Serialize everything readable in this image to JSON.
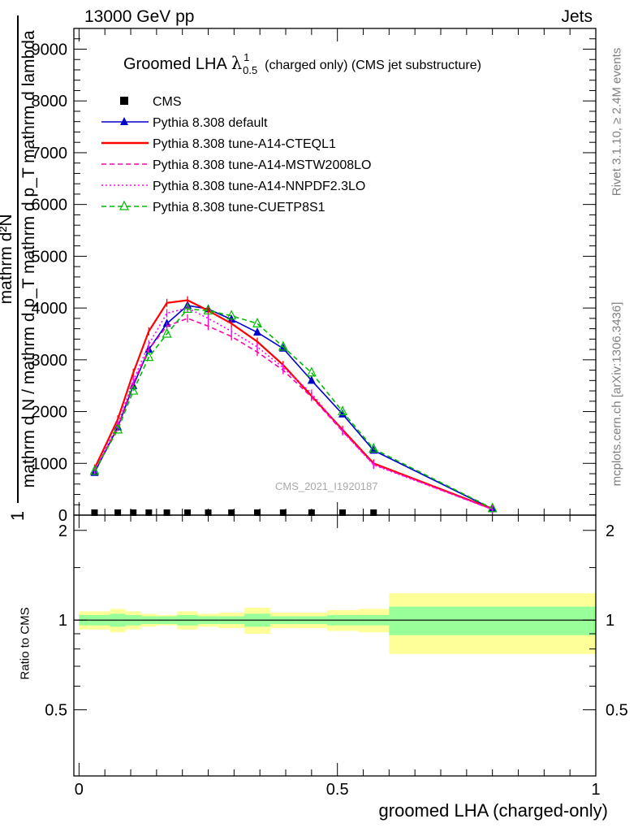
{
  "header": {
    "beam": "13000 GeV pp",
    "category": "Jets"
  },
  "side_labels": {
    "rivet": "Rivet 3.1.10, ≥ 2.4M events",
    "mcplots": "mcplots.cern.ch [arXiv:1306.3436]"
  },
  "watermark": "CMS_2021_I1920187",
  "chart_data": [
    {
      "type": "line",
      "title_main": "Groomed LHA",
      "title_symbol": "λ",
      "title_sup": "1",
      "title_sub": "0.5",
      "title_suffix": "(charged only) (CMS jet substructure)",
      "ylabel_numerator": "mathrm d²N",
      "ylabel_fraction_top": "1",
      "ylabel_denominator": "mathrm d N / mathrm d p_T mathrm d p_T mathrm d lambda",
      "ylim": [
        0,
        9400
      ],
      "yticks": [
        0,
        1000,
        2000,
        3000,
        4000,
        5000,
        6000,
        7000,
        8000,
        9000
      ],
      "ytick_labels": [
        "0",
        "1000",
        "2000",
        "3000",
        "4000",
        "5000",
        "6000",
        "7000",
        "8000",
        "9000"
      ],
      "xlim": [
        -0.01,
        1.0
      ],
      "legend_position": "top-left",
      "series": [
        {
          "name": "CMS",
          "color": "#000000",
          "dash": "",
          "marker": "square",
          "x": [
            0.03,
            0.075,
            0.105,
            0.135,
            0.17,
            0.21,
            0.25,
            0.295,
            0.345,
            0.395,
            0.45,
            0.51,
            0.57
          ],
          "y": [
            0,
            0,
            0,
            0,
            0,
            0,
            0,
            0,
            0,
            0,
            0,
            0,
            0
          ]
        },
        {
          "name": "Pythia 8.308 default",
          "color": "#0000cc",
          "dash": "",
          "marker": "triangle",
          "x": [
            0.03,
            0.075,
            0.105,
            0.135,
            0.17,
            0.21,
            0.25,
            0.295,
            0.345,
            0.395,
            0.45,
            0.51,
            0.57,
            0.8
          ],
          "y": [
            820,
            1700,
            2500,
            3200,
            3700,
            4050,
            3980,
            3780,
            3530,
            3220,
            2600,
            1950,
            1250,
            120
          ]
        },
        {
          "name": "Pythia 8.308 tune-A14-CTEQL1",
          "color": "#ff0000",
          "dash": "",
          "marker": "none",
          "x": [
            0.03,
            0.075,
            0.105,
            0.135,
            0.17,
            0.21,
            0.25,
            0.295,
            0.345,
            0.395,
            0.45,
            0.51,
            0.57,
            0.8
          ],
          "y": [
            900,
            1850,
            2750,
            3550,
            4100,
            4150,
            3950,
            3700,
            3350,
            2900,
            2300,
            1650,
            1000,
            120
          ]
        },
        {
          "name": "Pythia 8.308 tune-A14-MSTW2008LO",
          "color": "#ff00aa",
          "dash": "6,4",
          "marker": "none",
          "x": [
            0.03,
            0.075,
            0.105,
            0.135,
            0.17,
            0.21,
            0.25,
            0.295,
            0.345,
            0.395,
            0.45,
            0.51,
            0.57,
            0.8
          ],
          "y": [
            850,
            1700,
            2550,
            3200,
            3650,
            3800,
            3650,
            3450,
            3150,
            2800,
            2280,
            1620,
            980,
            110
          ]
        },
        {
          "name": "Pythia 8.308 tune-A14-NNPDF2.3LO",
          "color": "#ff00ff",
          "dash": "2,3",
          "marker": "none",
          "x": [
            0.03,
            0.075,
            0.105,
            0.135,
            0.17,
            0.21,
            0.25,
            0.295,
            0.345,
            0.395,
            0.45,
            0.51,
            0.57,
            0.8
          ],
          "y": [
            870,
            1750,
            2600,
            3300,
            3900,
            4000,
            3800,
            3550,
            3250,
            2850,
            2350,
            1620,
            970,
            110
          ]
        },
        {
          "name": "Pythia 8.308 tune-CUETP8S1",
          "color": "#00bb00",
          "dash": "6,4",
          "marker": "open-triangle",
          "x": [
            0.03,
            0.075,
            0.105,
            0.135,
            0.17,
            0.21,
            0.25,
            0.295,
            0.345,
            0.395,
            0.45,
            0.51,
            0.57,
            0.8
          ],
          "y": [
            850,
            1650,
            2400,
            3050,
            3500,
            3980,
            3950,
            3850,
            3700,
            3250,
            2750,
            2000,
            1280,
            130
          ]
        }
      ]
    },
    {
      "type": "area",
      "ylabel": "Ratio to CMS",
      "xlabel": "groomed LHA (charged-only)",
      "ylim": [
        0.3,
        2.25
      ],
      "yticks": [
        0.5,
        1,
        2
      ],
      "ytick_labels": [
        "0.5",
        "1",
        "2"
      ],
      "xlim": [
        -0.01,
        1.0
      ],
      "xticks": [
        0,
        0.5,
        1
      ],
      "xtick_labels": [
        "0",
        "0.5",
        "1"
      ],
      "reference_line": 1,
      "bins": [
        {
          "x0": 0.0,
          "x1": 0.06,
          "stat": 0.04,
          "total": 0.07
        },
        {
          "x0": 0.06,
          "x1": 0.09,
          "stat": 0.05,
          "total": 0.09
        },
        {
          "x0": 0.09,
          "x1": 0.12,
          "stat": 0.04,
          "total": 0.07
        },
        {
          "x0": 0.12,
          "x1": 0.15,
          "stat": 0.03,
          "total": 0.05
        },
        {
          "x0": 0.15,
          "x1": 0.19,
          "stat": 0.03,
          "total": 0.04
        },
        {
          "x0": 0.19,
          "x1": 0.23,
          "stat": 0.04,
          "total": 0.07
        },
        {
          "x0": 0.23,
          "x1": 0.27,
          "stat": 0.03,
          "total": 0.05
        },
        {
          "x0": 0.27,
          "x1": 0.32,
          "stat": 0.03,
          "total": 0.06
        },
        {
          "x0": 0.32,
          "x1": 0.37,
          "stat": 0.05,
          "total": 0.1
        },
        {
          "x0": 0.37,
          "x1": 0.42,
          "stat": 0.03,
          "total": 0.06
        },
        {
          "x0": 0.42,
          "x1": 0.48,
          "stat": 0.03,
          "total": 0.06
        },
        {
          "x0": 0.48,
          "x1": 0.54,
          "stat": 0.04,
          "total": 0.08
        },
        {
          "x0": 0.54,
          "x1": 0.6,
          "stat": 0.04,
          "total": 0.09
        },
        {
          "x0": 0.6,
          "x1": 1.0,
          "stat": 0.11,
          "total": 0.23
        }
      ]
    }
  ]
}
